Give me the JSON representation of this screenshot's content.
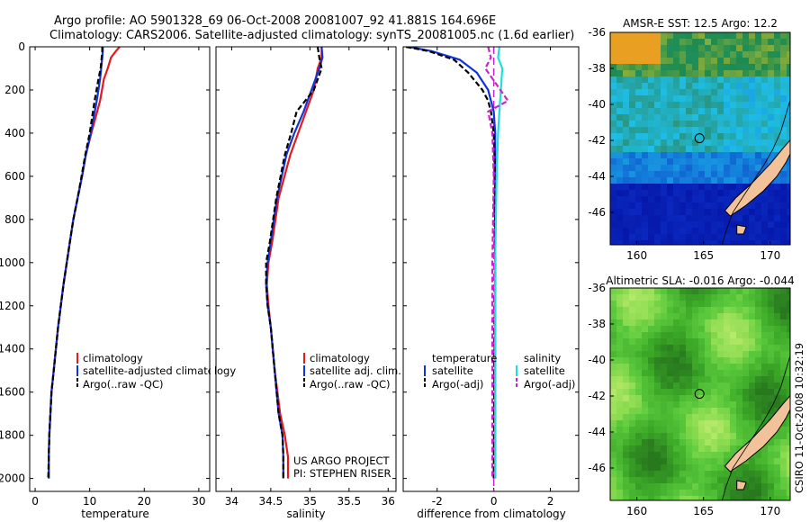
{
  "header": {
    "title_line1": "Argo profile: AO 5901328_69 06-Oct-2008 20081007_92 41.881S 164.696E",
    "title_line2": "Climatology: CARS2006. Satellite-adjusted climatology: synTS_20081005.nc (1.6d earlier)"
  },
  "credits": {
    "project": "US ARGO PROJECT",
    "pi": "PI: STEPHEN RISER",
    "csiro": "CSIRO 11-Oct-2008 10:32:19"
  },
  "colors": {
    "climatology": "#e41a1c",
    "satellite": "#1133dd",
    "argo": "#000000",
    "sal_satellite": "#22dddd",
    "sal_argo": "#cc22cc",
    "land": "#f2c39a"
  },
  "chart_data": [
    {
      "type": "line",
      "id": "temperature",
      "xlabel": "temperature",
      "xlim": [
        -1,
        32
      ],
      "ylim": [
        2060,
        0
      ],
      "xticks": [
        0,
        10,
        20,
        30
      ],
      "yticks": [
        0,
        200,
        400,
        600,
        800,
        1000,
        1200,
        1400,
        1600,
        1800,
        2000
      ],
      "legend": [
        "climatology",
        "satellite-adjusted climatology",
        "Argo(..raw -QC)"
      ],
      "series": [
        {
          "name": "climatology",
          "x": [
            15.5,
            14.8,
            13.9,
            13.3,
            12.6,
            11.9,
            10.3,
            9.3,
            8.6,
            7.8,
            7.0,
            6.4,
            5.8,
            5.2,
            4.2,
            3.4,
            3.0,
            2.8,
            2.6,
            2.5,
            2.5
          ],
          "y": [
            0,
            20,
            50,
            100,
            150,
            250,
            400,
            500,
            600,
            700,
            800,
            900,
            1000,
            1100,
            1300,
            1500,
            1600,
            1700,
            1800,
            1900,
            2000
          ]
        },
        {
          "name": "satellite",
          "x": [
            12.4,
            12.4,
            12.3,
            12.1,
            11.9,
            11.3,
            10.2,
            9.3,
            8.6,
            7.8,
            7.0,
            6.4,
            5.8,
            5.2,
            4.2,
            3.4,
            3.0,
            2.8,
            2.6,
            2.5,
            2.5
          ],
          "y": [
            0,
            20,
            50,
            100,
            150,
            250,
            400,
            500,
            600,
            700,
            800,
            900,
            1000,
            1100,
            1300,
            1500,
            1600,
            1700,
            1800,
            1900,
            2000
          ]
        },
        {
          "name": "argo",
          "x": [
            12.3,
            12.3,
            12.2,
            12.0,
            11.6,
            10.9,
            10.0,
            9.2,
            8.5,
            7.8,
            7.0,
            6.4,
            5.8,
            5.2,
            4.2,
            3.4,
            3.0,
            2.8,
            2.6,
            2.5,
            2.4
          ],
          "y": [
            0,
            20,
            50,
            100,
            150,
            250,
            400,
            500,
            600,
            700,
            800,
            900,
            1000,
            1100,
            1300,
            1500,
            1600,
            1700,
            1800,
            1900,
            2000
          ]
        }
      ]
    },
    {
      "type": "line",
      "id": "salinity",
      "xlabel": "salinity",
      "xlim": [
        33.8,
        36.1
      ],
      "ylim": [
        2060,
        0
      ],
      "xticks": [
        34,
        34.5,
        35,
        35.5,
        36
      ],
      "xticklabels": [
        "34",
        "34.5",
        "35",
        "35.5",
        "36"
      ],
      "legend": [
        "climatology",
        "satellite adj. clim.",
        "Argo(..raw -QC)"
      ],
      "series": [
        {
          "name": "climatology",
          "x": [
            35.15,
            35.15,
            35.1,
            35.05,
            34.95,
            34.85,
            34.75,
            34.6,
            34.52,
            34.47,
            34.45,
            34.47,
            34.5,
            34.55,
            34.62,
            34.68,
            34.72,
            34.72
          ],
          "y": [
            0,
            50,
            100,
            200,
            300,
            400,
            500,
            700,
            900,
            1000,
            1100,
            1200,
            1300,
            1500,
            1700,
            1800,
            1900,
            2000
          ]
        },
        {
          "name": "satellite",
          "x": [
            35.15,
            35.16,
            35.12,
            35.02,
            34.92,
            34.8,
            34.7,
            34.58,
            34.5,
            34.46,
            34.44,
            34.46,
            34.5,
            34.55,
            34.6,
            34.65,
            34.66,
            34.66
          ],
          "y": [
            0,
            50,
            100,
            200,
            300,
            400,
            500,
            700,
            900,
            1000,
            1100,
            1200,
            1300,
            1500,
            1700,
            1800,
            1900,
            2000
          ]
        },
        {
          "name": "argo",
          "x": [
            35.1,
            35.12,
            35.15,
            35.05,
            34.83,
            34.76,
            34.68,
            34.57,
            34.49,
            34.44,
            34.44,
            34.46,
            34.5,
            34.55,
            34.6,
            34.65,
            34.66,
            34.66
          ],
          "y": [
            0,
            50,
            100,
            200,
            300,
            400,
            500,
            700,
            900,
            1000,
            1100,
            1200,
            1300,
            1500,
            1700,
            1800,
            1900,
            2000
          ]
        }
      ]
    },
    {
      "type": "line",
      "id": "difference",
      "xlabel": "difference from climatology",
      "xlim": [
        -3.2,
        3
      ],
      "ylim": [
        2060,
        0
      ],
      "xticks": [
        -2,
        0,
        2
      ],
      "legend_titles": [
        "temperature",
        "salinity"
      ],
      "legend": [
        "satellite",
        "Argo(-adj)",
        "satellite",
        "Argo(-adj)"
      ],
      "series": [
        {
          "name": "temperature satellite",
          "x": [
            -3.0,
            -2.2,
            -1.2,
            -0.6,
            -0.2,
            0.0,
            0.05,
            0.05,
            0.05,
            0.05,
            0.05
          ],
          "y": [
            0,
            20,
            60,
            120,
            200,
            300,
            400,
            600,
            1000,
            1500,
            2000
          ]
        },
        {
          "name": "temperature Argo(-adj)",
          "x": [
            -3.1,
            -2.3,
            -1.4,
            -0.9,
            -0.4,
            -0.2,
            -0.1,
            0.0,
            0.05,
            0.05,
            0.0
          ],
          "y": [
            0,
            20,
            60,
            120,
            200,
            250,
            300,
            400,
            600,
            1000,
            2000
          ]
        },
        {
          "name": "salinity satellite",
          "x": [
            0.2,
            0.15,
            0.3,
            0.25,
            0.2,
            0.15,
            0.1,
            0.05,
            0.05
          ],
          "y": [
            0,
            50,
            100,
            200,
            300,
            400,
            600,
            1000,
            2000
          ]
        },
        {
          "name": "salinity Argo(-adj)",
          "x": [
            -0.2,
            -0.1,
            -0.3,
            0.5,
            -0.2,
            -0.05,
            0.0,
            -0.05,
            -0.05
          ],
          "y": [
            0,
            50,
            100,
            250,
            300,
            400,
            600,
            1000,
            2000
          ]
        }
      ]
    },
    {
      "type": "heatmap",
      "id": "sst-map",
      "title": "AMSR-E SST: 12.5 Argo: 12.2",
      "xlim": [
        158,
        171.5
      ],
      "ylim": [
        -47.8,
        -36
      ],
      "xticks": [
        160,
        165,
        170
      ],
      "yticks": [
        -36,
        -38,
        -40,
        -42,
        -44,
        -46
      ],
      "marker": {
        "lon": 164.696,
        "lat": -41.881
      }
    },
    {
      "type": "heatmap",
      "id": "sla-map",
      "title": "Altimetric SLA: -0.016 Argo: -0.044",
      "xlim": [
        158,
        171.5
      ],
      "ylim": [
        -47.8,
        -36
      ],
      "xticks": [
        160,
        165,
        170
      ],
      "yticks": [
        -36,
        -38,
        -40,
        -42,
        -44,
        -46
      ],
      "marker": {
        "lon": 164.696,
        "lat": -41.881
      }
    }
  ]
}
